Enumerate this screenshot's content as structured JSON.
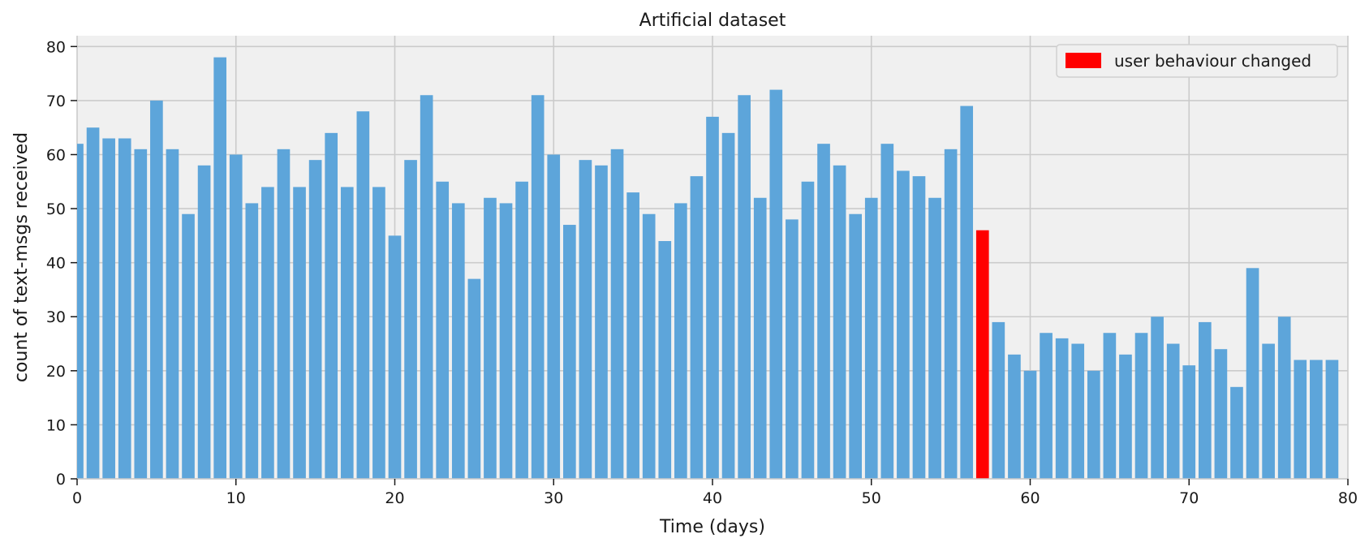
{
  "chart_data": {
    "type": "bar",
    "title": "Artificial dataset",
    "xlabel": "Time (days)",
    "ylabel": "count of text-msgs received",
    "xlim": [
      0,
      80
    ],
    "ylim": [
      0,
      82
    ],
    "xticks": [
      0,
      10,
      20,
      30,
      40,
      50,
      60,
      70,
      80
    ],
    "yticks": [
      0,
      10,
      20,
      30,
      40,
      50,
      60,
      70,
      80
    ],
    "grid": true,
    "legend_position": "top-right",
    "colors": {
      "bar": "#5da5da",
      "highlight": "#ff0000",
      "plot_background": "#f0f0f0",
      "grid": "#cbcbcb"
    },
    "highlight_index": 57,
    "legend": [
      {
        "label": "user behaviour changed",
        "color": "#ff0000"
      }
    ],
    "values": [
      62,
      65,
      63,
      63,
      61,
      70,
      61,
      49,
      58,
      78,
      60,
      51,
      54,
      61,
      54,
      59,
      64,
      54,
      68,
      54,
      45,
      59,
      71,
      55,
      51,
      37,
      52,
      51,
      55,
      71,
      60,
      47,
      59,
      58,
      61,
      53,
      49,
      44,
      51,
      56,
      67,
      64,
      71,
      52,
      72,
      48,
      55,
      62,
      58,
      49,
      52,
      62,
      57,
      56,
      52,
      61,
      69,
      46,
      29,
      23,
      20,
      27,
      26,
      25,
      20,
      27,
      23,
      27,
      30,
      25,
      21,
      29,
      24,
      17,
      39,
      25,
      30,
      22,
      22,
      22
    ]
  }
}
